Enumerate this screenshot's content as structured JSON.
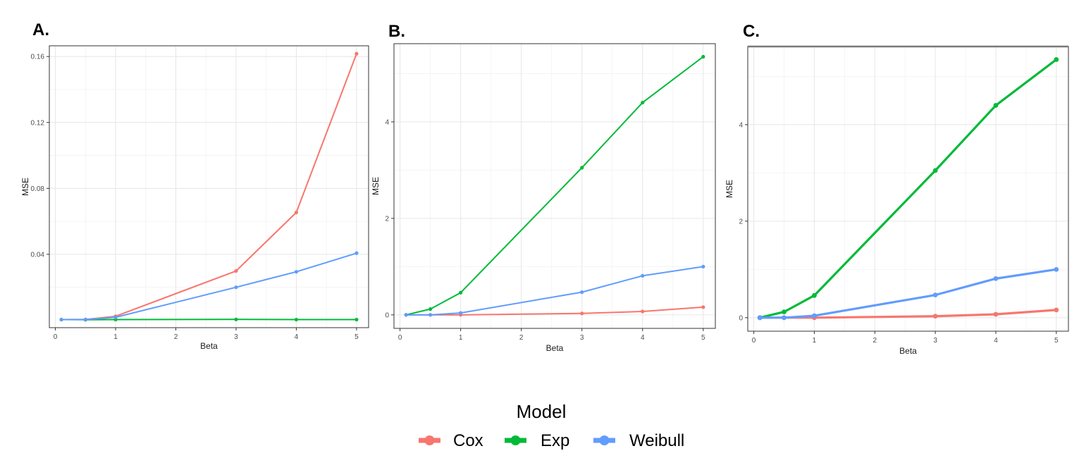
{
  "legend": {
    "title": "Model",
    "entries": [
      {
        "name": "Cox",
        "color": "#F8766D"
      },
      {
        "name": "Exp",
        "color": "#00BA38"
      },
      {
        "name": "Weibull",
        "color": "#619CFF"
      }
    ]
  },
  "chart_data": [
    {
      "type": "line",
      "panel": "A.",
      "xlabel": "Beta",
      "ylabel": "MSE",
      "x": [
        0.1,
        0.5,
        1,
        3,
        4,
        5
      ],
      "xlim": [
        -0.1,
        5.2
      ],
      "ylim": [
        -0.0045,
        0.1665
      ],
      "xticks": [
        0,
        1,
        2,
        3,
        4,
        5
      ],
      "yticks": [
        0.04,
        0.08,
        0.12,
        0.16
      ],
      "ytick_labels": [
        "0.04",
        "0.08",
        "0.12",
        "0.16"
      ],
      "grid": true,
      "series": [
        {
          "name": "Cox",
          "color": "#F8766D",
          "values": [
            0.0004,
            0.0005,
            0.0024,
            0.0299,
            0.0654,
            0.1617
          ]
        },
        {
          "name": "Exp",
          "color": "#00BA38",
          "values": [
            0.0004,
            0.0003,
            0.0004,
            0.0005,
            0.0004,
            0.0004
          ]
        },
        {
          "name": "Weibull",
          "color": "#619CFF",
          "values": [
            0.0004,
            0.0004,
            0.0018,
            0.02,
            0.0294,
            0.0407
          ]
        }
      ]
    },
    {
      "type": "line",
      "panel": "B.",
      "xlabel": "Beta",
      "ylabel": "MSE",
      "x": [
        0.1,
        0.5,
        1,
        3,
        4,
        5
      ],
      "xlim": [
        -0.1,
        5.2
      ],
      "ylim": [
        -0.28,
        5.62
      ],
      "xticks": [
        0,
        1,
        2,
        3,
        4,
        5
      ],
      "yticks": [
        0,
        2,
        4
      ],
      "ytick_labels": [
        "0",
        "2",
        "4"
      ],
      "grid": true,
      "series": [
        {
          "name": "Cox",
          "color": "#F8766D",
          "values": [
            0.0,
            0.0,
            0.0,
            0.03,
            0.07,
            0.16
          ]
        },
        {
          "name": "Exp",
          "color": "#00BA38",
          "values": [
            0.0,
            0.12,
            0.46,
            3.05,
            4.4,
            5.35
          ]
        },
        {
          "name": "Weibull",
          "color": "#619CFF",
          "values": [
            0.0,
            0.0,
            0.04,
            0.47,
            0.81,
            1.0
          ]
        }
      ]
    },
    {
      "type": "line",
      "panel": "C.",
      "xlabel": "Beta",
      "ylabel": "MSE",
      "x": [
        0.1,
        0.5,
        1,
        3,
        4,
        5
      ],
      "xlim": [
        -0.1,
        5.2
      ],
      "ylim": [
        -0.28,
        5.62
      ],
      "xticks": [
        0,
        1,
        2,
        3,
        4,
        5
      ],
      "yticks": [
        0,
        2,
        4
      ],
      "ytick_labels": [
        "0",
        "2",
        "4"
      ],
      "grid": true,
      "series": [
        {
          "name": "Cox",
          "color": "#F8766D",
          "values": [
            0.0,
            0.0,
            0.0,
            0.03,
            0.07,
            0.16
          ]
        },
        {
          "name": "Exp",
          "color": "#00BA38",
          "values": [
            0.0,
            0.12,
            0.46,
            3.05,
            4.4,
            5.35
          ]
        },
        {
          "name": "Weibull",
          "color": "#619CFF",
          "values": [
            0.0,
            0.0,
            0.04,
            0.47,
            0.81,
            1.0
          ]
        }
      ]
    }
  ]
}
